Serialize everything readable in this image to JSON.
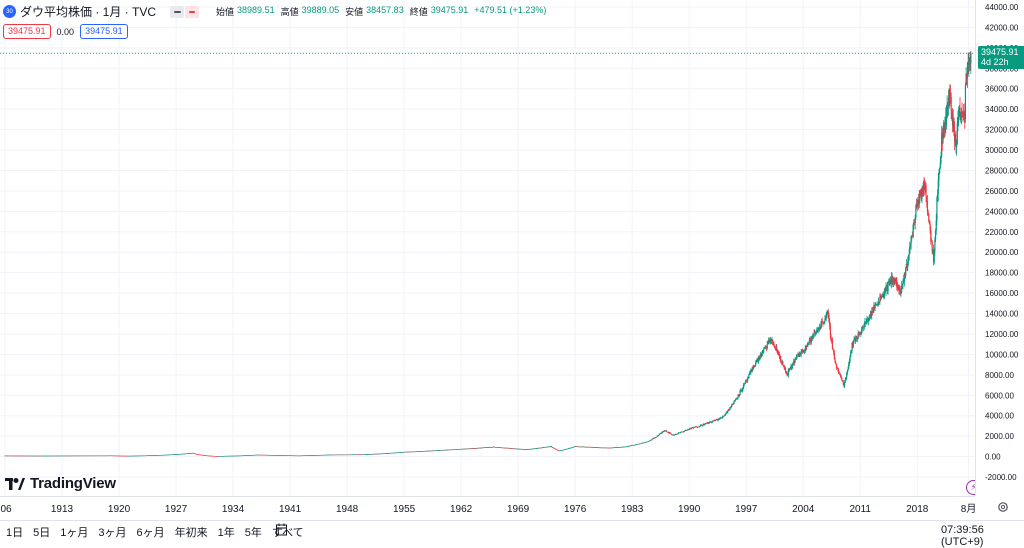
{
  "legend": {
    "symbol_badge": "30",
    "title": "ダウ平均株価 · 1月 · TVC",
    "ohlc": [
      {
        "key": "始値",
        "value": "38989.51"
      },
      {
        "key": "高値",
        "value": "39889.05"
      },
      {
        "key": "安値",
        "value": "38457.83"
      },
      {
        "key": "終値",
        "value": "39475.91"
      }
    ],
    "change": "+479.51 (+1.23%)"
  },
  "price_boxes": {
    "bid": "39475.91",
    "spread": "0.00",
    "ask": "39475.91"
  },
  "last_price_label": {
    "price": "39475.91",
    "countdown": "4d 22h"
  },
  "brand": "TradingView",
  "bottom_toolbar": {
    "ranges": [
      "1日",
      "5日",
      "1ヶ月",
      "3ヶ月",
      "6ヶ月",
      "年初来",
      "1年",
      "5年",
      "すべて"
    ],
    "clock": "07:39:56 (UTC+9)"
  },
  "colors": {
    "up": "#089981",
    "down": "#f23645",
    "accent": "#2962ff",
    "grid": "#f0f3fa"
  },
  "icons": {
    "calendar": "calendar-range-icon",
    "settings": "gear-icon",
    "alert": "lightning-icon"
  },
  "chart_data": {
    "type": "candlestick",
    "interval": "1 month",
    "y_ticks": [
      "44000.00",
      "42000.00",
      "40000.00",
      "38000.00",
      "36000.00",
      "34000.00",
      "32000.00",
      "30000.00",
      "28000.00",
      "26000.00",
      "24000.00",
      "22000.00",
      "20000.00",
      "18000.00",
      "16000.00",
      "14000.00",
      "12000.00",
      "10000.00",
      "8000.00",
      "6000.00",
      "4000.00",
      "2000.00",
      "0.00",
      "-2000.00"
    ],
    "ylim": [
      -2000,
      44000
    ],
    "x_ticks": [
      "06",
      "1913",
      "1920",
      "1927",
      "1934",
      "1941",
      "1948",
      "1955",
      "1962",
      "1969",
      "1976",
      "1983",
      "1990",
      "1997",
      "2004",
      "2011",
      "2018",
      "8月"
    ],
    "xlim": [
      1906,
      2024.6
    ],
    "close_path": [
      [
        1906,
        95
      ],
      [
        1910,
        80
      ],
      [
        1915,
        95
      ],
      [
        1919,
        105
      ],
      [
        1921,
        70
      ],
      [
        1925,
        150
      ],
      [
        1929,
        350
      ],
      [
        1932,
        45
      ],
      [
        1937,
        180
      ],
      [
        1942,
        100
      ],
      [
        1946,
        190
      ],
      [
        1950,
        210
      ],
      [
        1955,
        450
      ],
      [
        1960,
        650
      ],
      [
        1966,
        950
      ],
      [
        1970,
        700
      ],
      [
        1973,
        1000
      ],
      [
        1974,
        580
      ],
      [
        1976,
        1000
      ],
      [
        1980,
        850
      ],
      [
        1982,
        950
      ],
      [
        1985,
        1500
      ],
      [
        1987,
        2600
      ],
      [
        1988,
        2100
      ],
      [
        1990,
        2700
      ],
      [
        1994,
        3800
      ],
      [
        1996,
        6000
      ],
      [
        1998,
        9000
      ],
      [
        2000,
        11500
      ],
      [
        2001,
        10000
      ],
      [
        2002,
        8000
      ],
      [
        2003,
        9500
      ],
      [
        2007,
        14000
      ],
      [
        2008,
        9000
      ],
      [
        2009,
        7000
      ],
      [
        2010,
        11000
      ],
      [
        2013,
        15000
      ],
      [
        2015,
        17500
      ],
      [
        2016,
        16000
      ],
      [
        2018,
        25000
      ],
      [
        2019,
        26500
      ],
      [
        2020,
        19500
      ],
      [
        2020.5,
        26000
      ],
      [
        2021,
        31000
      ],
      [
        2022,
        35500
      ],
      [
        2022.8,
        30000
      ],
      [
        2023,
        34000
      ],
      [
        2023.8,
        33000
      ],
      [
        2024,
        37500
      ],
      [
        2024.6,
        39475.91
      ]
    ],
    "last_close": 39475.91
  }
}
